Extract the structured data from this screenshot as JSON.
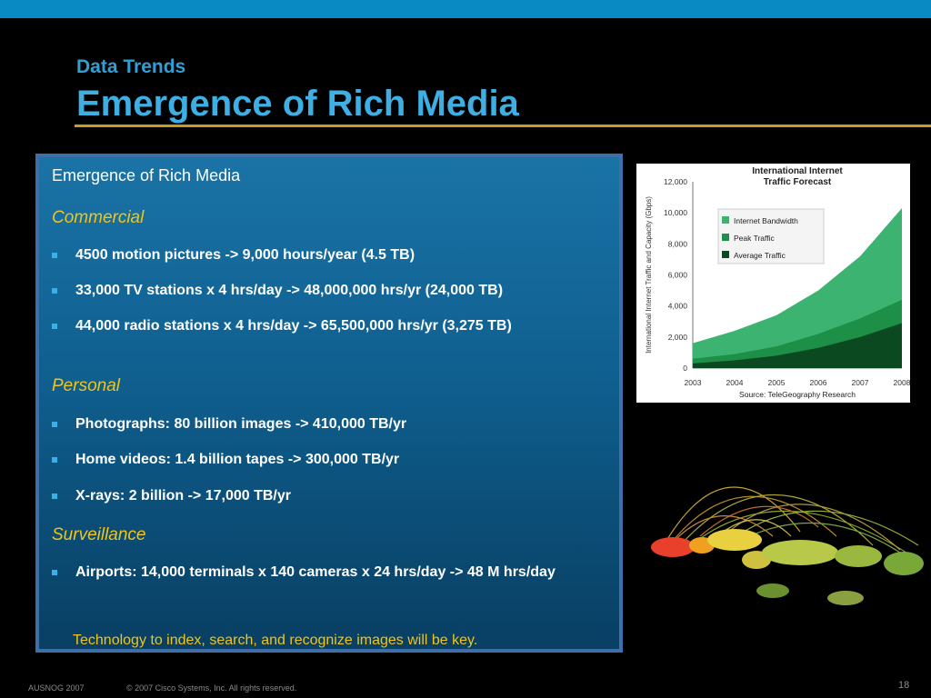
{
  "slide": {
    "subtitle": "Data Trends",
    "title": "Emergence of Rich Media"
  },
  "content": {
    "heading": "Emergence of Rich Media",
    "sections": [
      {
        "label": "Commercial",
        "items": [
          "4500 motion pictures -> 9,000 hours/year (4.5 TB)",
          "33,000 TV stations x 4 hrs/day -> 48,000,000 hrs/yr  (24,000 TB)",
          "44,000 radio stations x 4 hrs/day -> 65,500,000 hrs/yr (3,275 TB)"
        ]
      },
      {
        "label": "Personal",
        "items": [
          "Photographs: 80 billion images -> 410,000 TB/yr",
          "Home videos: 1.4 billion tapes ->  300,000 TB/yr",
          "X-rays: 2 billion -> 17,000 TB/yr"
        ]
      },
      {
        "label": "Surveillance",
        "items": [
          "Airports: 14,000 terminals x 140 cameras x 24 hrs/day -> 48 M hrs/day"
        ]
      }
    ],
    "footnote": "Technology to index, search, and recognize images will be key."
  },
  "chart_data": {
    "type": "area",
    "title": "International Internet Traffic Forecast",
    "ylabel": "International Internet Traffic and Capacity (Gbps)",
    "source": "Source: TeleGeography Research",
    "x": [
      "2003",
      "2004",
      "2005",
      "2006",
      "2007",
      "2008"
    ],
    "yticks": [
      "0",
      "2,000",
      "4,000",
      "6,000",
      "8,000",
      "10,000",
      "12,000"
    ],
    "ylim": [
      0,
      12000
    ],
    "series": [
      {
        "name": "Internet Bandwidth",
        "color": "#3cb371",
        "values": [
          1600,
          2400,
          3400,
          5000,
          7200,
          10300
        ]
      },
      {
        "name": "Peak Traffic",
        "color": "#1d8f46",
        "values": [
          600,
          900,
          1400,
          2200,
          3200,
          4400
        ]
      },
      {
        "name": "Average Traffic",
        "color": "#0b4a20",
        "values": [
          300,
          500,
          800,
          1300,
          2000,
          2900
        ]
      }
    ],
    "legend_position": "top-left"
  },
  "footer": {
    "event": "AUSNOG 2007",
    "copyright": "© 2007 Cisco Systems, Inc. All rights reserved.",
    "page": "18"
  },
  "colors": {
    "accent_blue": "#3eaee3",
    "rule_gold": "#c89e22",
    "section_yellow": "#f0c419",
    "bullet_blue": "#3ab0e8"
  }
}
